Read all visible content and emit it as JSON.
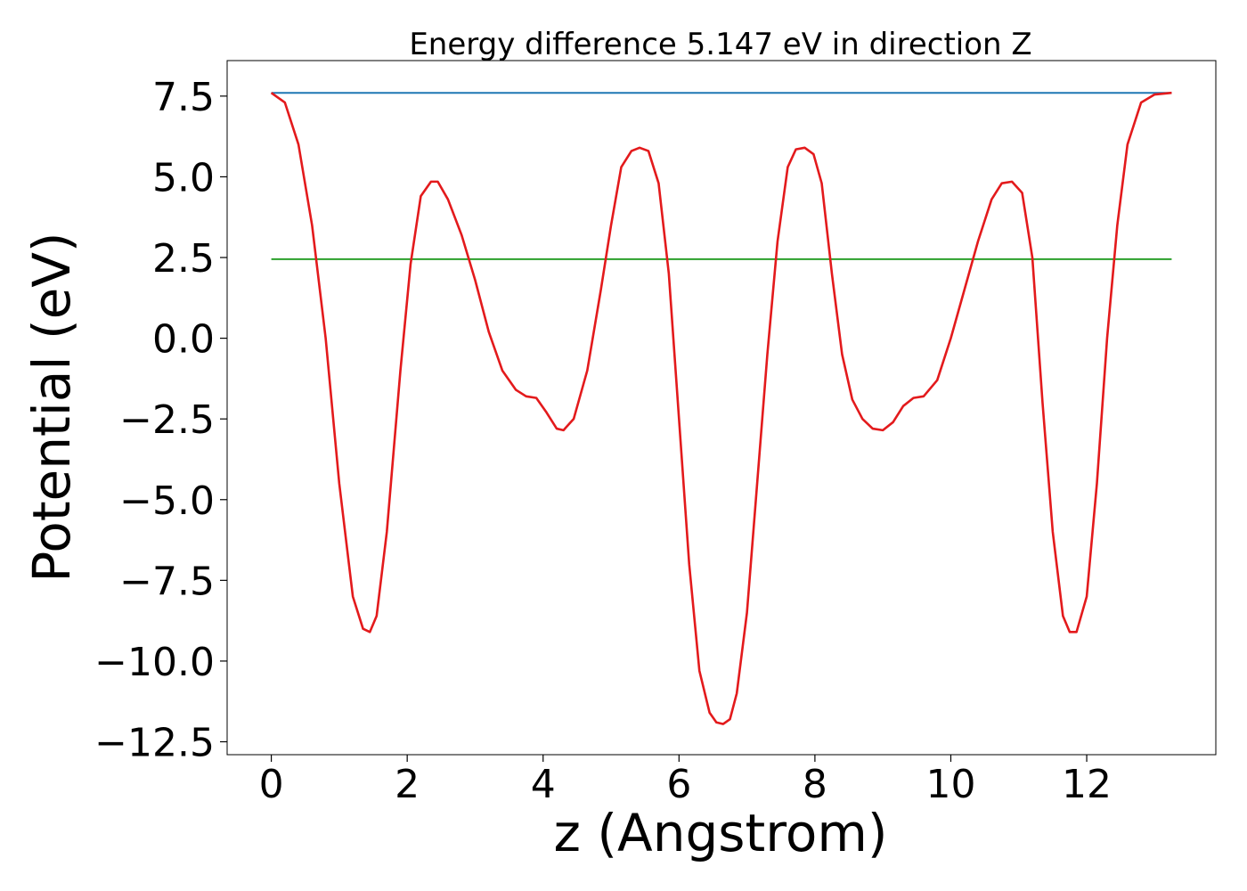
{
  "chart_data": {
    "type": "line",
    "title": "Energy difference 5.147 eV in direction Z",
    "xlabel": "z (Angstrom)",
    "ylabel": "Potential (eV)",
    "xlim": [
      -0.65,
      13.9
    ],
    "ylim": [
      -12.9,
      8.6
    ],
    "xticks": [
      0,
      2,
      4,
      6,
      8,
      10,
      12
    ],
    "xtick_labels": [
      "0",
      "2",
      "4",
      "6",
      "8",
      "10",
      "12"
    ],
    "yticks": [
      7.5,
      5.0,
      2.5,
      0.0,
      -2.5,
      -5.0,
      -7.5,
      -10.0,
      -12.5
    ],
    "ytick_labels": [
      "7.5",
      "5.0",
      "2.5",
      "0.0",
      "−2.5",
      "−5.0",
      "−7.5",
      "−10.0",
      "−12.5"
    ],
    "grid": false,
    "series": [
      {
        "color": "#1f77b4",
        "x": [
          0,
          13.25
        ],
        "y": [
          7.6,
          7.6
        ]
      },
      {
        "color": "#2ca02c",
        "x": [
          0,
          13.25
        ],
        "y": [
          2.45,
          2.45
        ]
      },
      {
        "color": "#e31a1c",
        "x": [
          0,
          0.2,
          0.4,
          0.6,
          0.8,
          1.0,
          1.2,
          1.35,
          1.45,
          1.55,
          1.7,
          1.9,
          2.05,
          2.2,
          2.35,
          2.45,
          2.6,
          2.8,
          3.0,
          3.2,
          3.4,
          3.6,
          3.75,
          3.9,
          4.05,
          4.2,
          4.3,
          4.45,
          4.65,
          4.85,
          5.0,
          5.15,
          5.3,
          5.42,
          5.55,
          5.7,
          5.85,
          6.0,
          6.15,
          6.3,
          6.45,
          6.55,
          6.65,
          6.75,
          6.85,
          7.0,
          7.15,
          7.3,
          7.45,
          7.6,
          7.72,
          7.85,
          7.98,
          8.1,
          8.25,
          8.4,
          8.55,
          8.7,
          8.85,
          9.0,
          9.15,
          9.3,
          9.45,
          9.6,
          9.8,
          10.0,
          10.2,
          10.4,
          10.6,
          10.75,
          10.9,
          11.05,
          11.2,
          11.35,
          11.5,
          11.65,
          11.75,
          11.85,
          12.0,
          12.15,
          12.3,
          12.45,
          12.6,
          12.8,
          13.0,
          13.25
        ],
        "y": [
          7.6,
          7.3,
          6.0,
          3.5,
          0.0,
          -4.5,
          -8.0,
          -9.0,
          -9.1,
          -8.6,
          -6.0,
          -1.0,
          2.3,
          4.4,
          4.85,
          4.85,
          4.3,
          3.2,
          1.8,
          0.2,
          -1.0,
          -1.6,
          -1.8,
          -1.85,
          -2.3,
          -2.8,
          -2.85,
          -2.5,
          -1.0,
          1.5,
          3.5,
          5.3,
          5.8,
          5.9,
          5.8,
          4.8,
          2.0,
          -2.5,
          -7.0,
          -10.3,
          -11.6,
          -11.9,
          -11.95,
          -11.8,
          -11.0,
          -8.5,
          -4.5,
          -0.5,
          3.0,
          5.3,
          5.85,
          5.9,
          5.7,
          4.8,
          2.0,
          -0.5,
          -1.9,
          -2.5,
          -2.8,
          -2.85,
          -2.6,
          -2.1,
          -1.85,
          -1.8,
          -1.3,
          0.0,
          1.5,
          3.0,
          4.3,
          4.8,
          4.85,
          4.5,
          2.5,
          -2.0,
          -6.0,
          -8.6,
          -9.1,
          -9.1,
          -8.0,
          -4.5,
          0.0,
          3.5,
          6.0,
          7.3,
          7.55,
          7.6
        ]
      }
    ]
  }
}
